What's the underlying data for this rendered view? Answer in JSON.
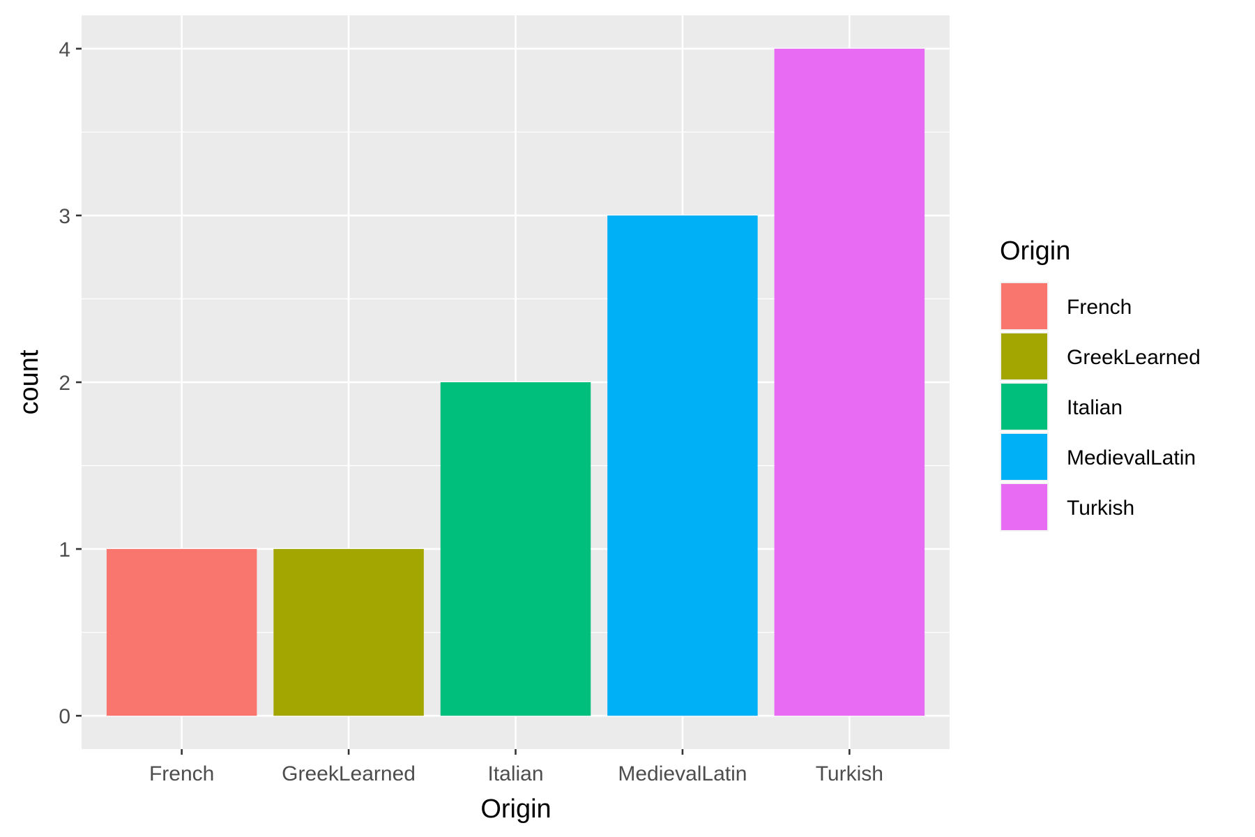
{
  "chart_data": {
    "type": "bar",
    "categories": [
      "French",
      "GreekLearned",
      "Italian",
      "MedievalLatin",
      "Turkish"
    ],
    "values": [
      1,
      1,
      2,
      3,
      4
    ],
    "colors": [
      "#F8766D",
      "#A3A500",
      "#00BF7D",
      "#00B0F6",
      "#E76BF3"
    ],
    "title": "",
    "xlabel": "Origin",
    "ylabel": "count",
    "ylim": [
      -0.2,
      4.2
    ],
    "yticks": [
      0,
      1,
      2,
      3,
      4
    ],
    "grid": true,
    "panel_background": "#EBEBEB",
    "grid_color": "#FFFFFF",
    "legend": {
      "title": "Origin",
      "placement": "right",
      "entries": [
        "French",
        "GreekLearned",
        "Italian",
        "MedievalLatin",
        "Turkish"
      ]
    }
  }
}
